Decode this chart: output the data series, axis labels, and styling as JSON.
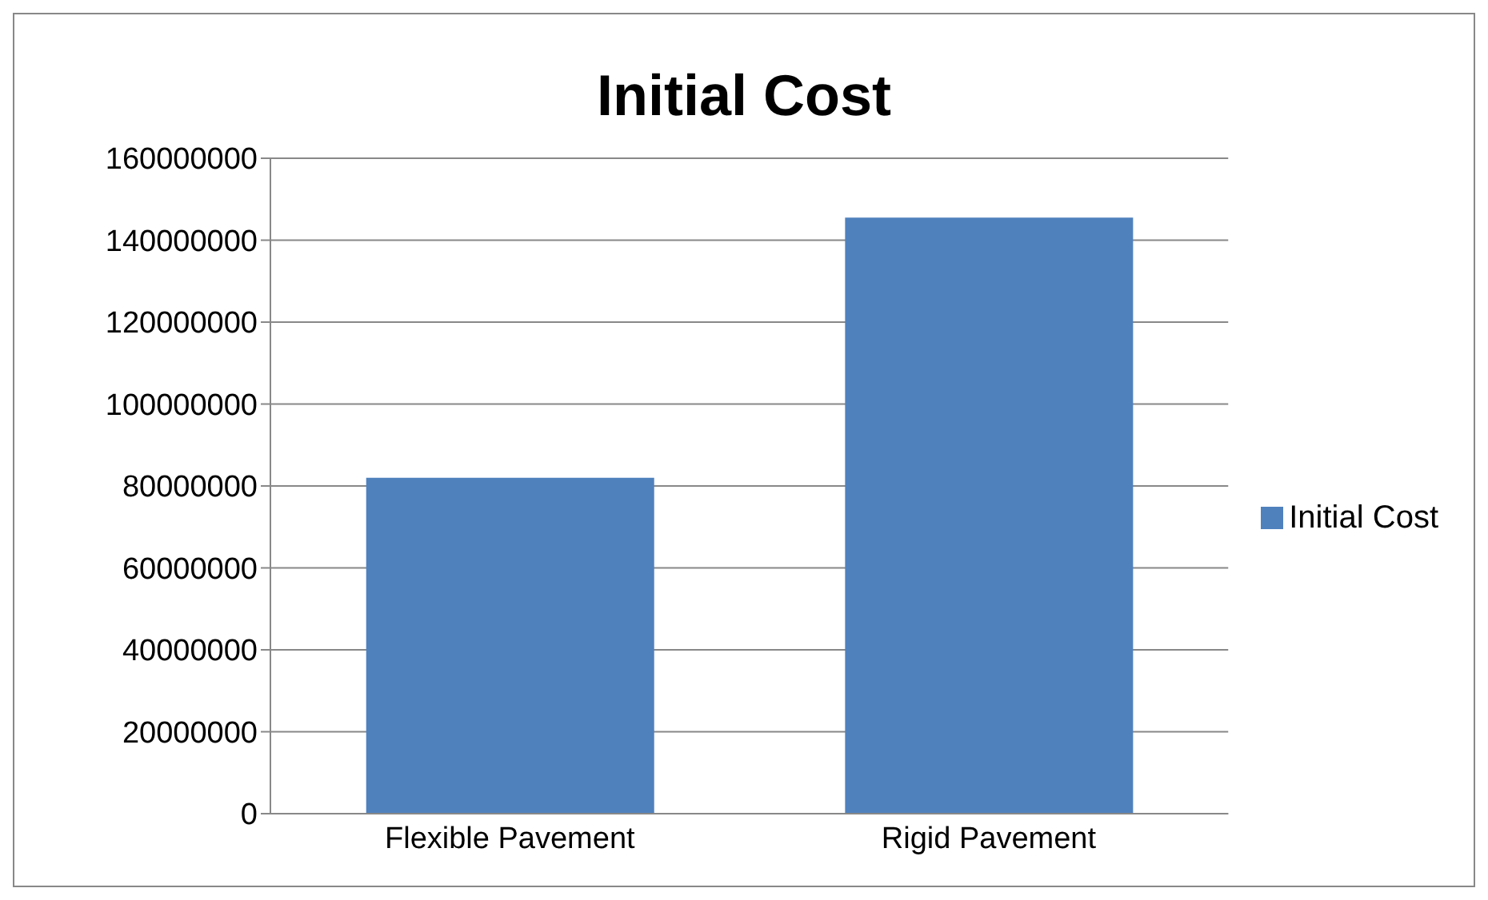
{
  "chart_data": {
    "type": "bar",
    "title": "Initial Cost",
    "categories": [
      "Flexible Pavement",
      "Rigid Pavement"
    ],
    "series": [
      {
        "name": "Initial Cost",
        "color": "#4f81bd",
        "values": [
          82000000,
          145500000
        ]
      }
    ],
    "ylim": [
      0,
      160000000
    ],
    "yticks": [
      0,
      20000000,
      40000000,
      60000000,
      80000000,
      100000000,
      120000000,
      140000000,
      160000000
    ],
    "grid": "y",
    "legend": "right"
  }
}
